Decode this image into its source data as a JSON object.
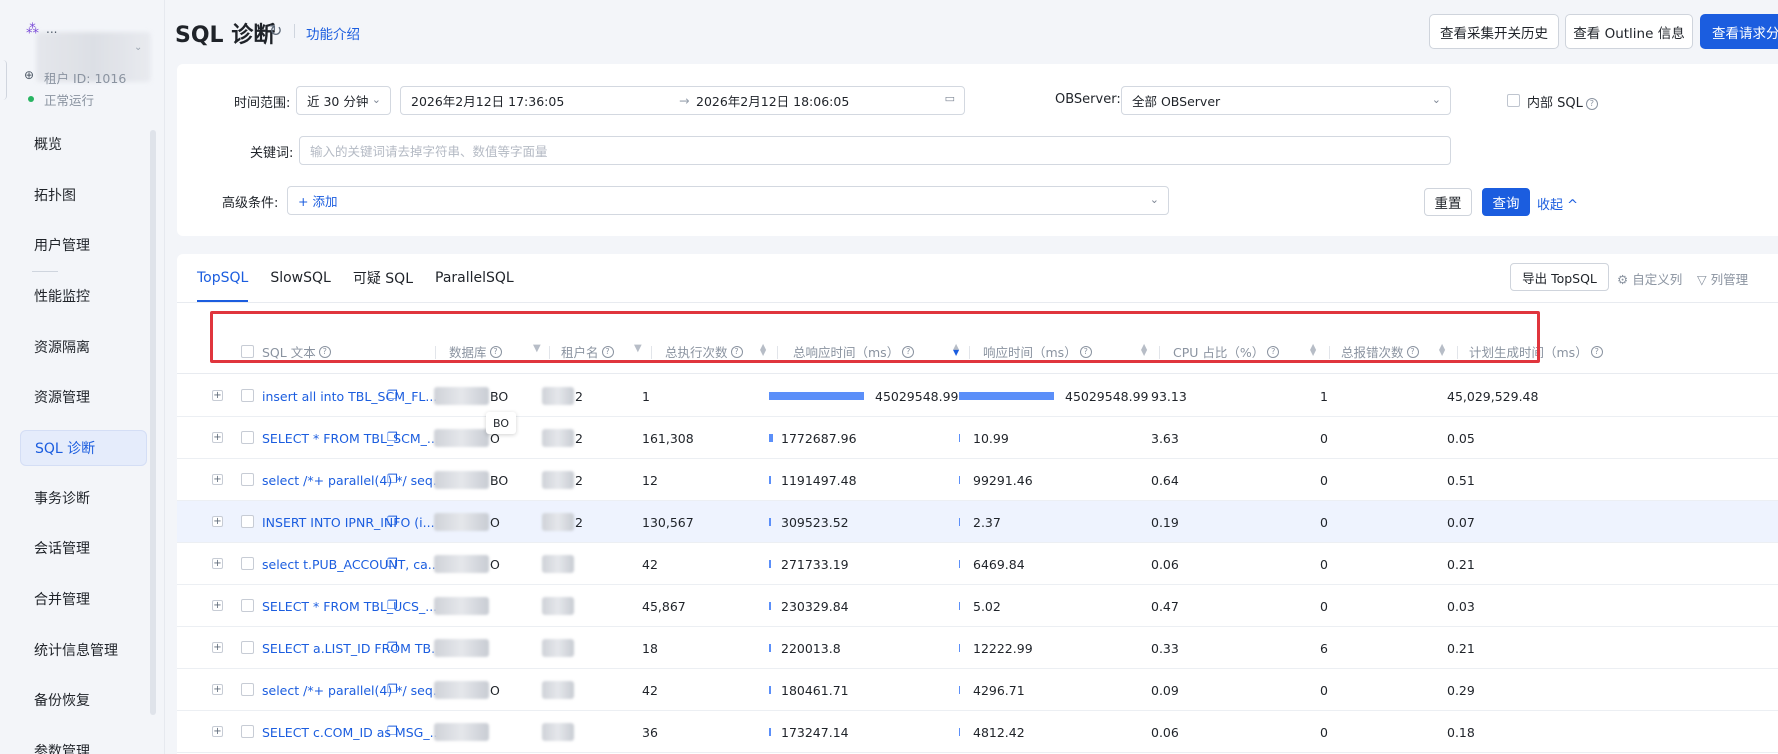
{
  "tenant": {
    "name": "...",
    "id_label": "租户 ID: 1016",
    "status": "正常运行"
  },
  "nav": {
    "items": [
      {
        "label": "概览"
      },
      {
        "label": "拓扑图"
      },
      {
        "label": "用户管理"
      },
      {
        "label": "性能监控"
      },
      {
        "label": "资源隔离"
      },
      {
        "label": "资源管理"
      },
      {
        "label": "SQL 诊断"
      },
      {
        "label": "事务诊断"
      },
      {
        "label": "会话管理"
      },
      {
        "label": "合并管理"
      },
      {
        "label": "统计信息管理"
      },
      {
        "label": "备份恢复"
      },
      {
        "label": "参数管理"
      }
    ],
    "active": "SQL 诊断"
  },
  "header": {
    "title": "SQL 诊断",
    "help_link": "功能介绍",
    "btn_history": "查看采集开关历史",
    "btn_outline": "查看 Outline 信息",
    "btn_request": "查看请求分析"
  },
  "filter": {
    "time_label": "时间范围:",
    "time_preset": "近 30 分钟",
    "start_time": "2026年2月12日 17:36:05",
    "end_time": "2026年2月12日 18:06:05",
    "arrow": "→",
    "observer_label": "OBServer:",
    "observer_value": "全部 OBServer",
    "internal_sql_label": "内部 SQL",
    "keyword_label": "关键词:",
    "keyword_placeholder": "输入的关键词请去掉字符串、数值等字面量",
    "advanced_label": "高级条件:",
    "add_label": "+ 添加",
    "reset": "重置",
    "query": "查询",
    "collapse": "收起 ^"
  },
  "tabs": {
    "items": [
      "TopSQL",
      "SlowSQL",
      "可疑 SQL",
      "ParallelSQL"
    ],
    "active": "TopSQL",
    "export": "导出 TopSQL",
    "custom_cols": "自定义列",
    "col_manage": "列管理"
  },
  "table": {
    "columns": {
      "sql_text": "SQL 文本",
      "database": "数据库",
      "user": "租户名",
      "exec_count": "总执行次数",
      "total_resp": "总响应时间（ms）",
      "resp": "响应时间（ms）",
      "cpu": "CPU 占比（%）",
      "errors": "总报错次数",
      "plan_time": "计划生成时间（ms）"
    },
    "rows": [
      {
        "sql": "insert all into TBL_SCM_FL...",
        "db_suffix": "BO",
        "user_suffix": "2",
        "exec": "1",
        "total_resp": "45029548.99",
        "total_resp_frac": 1.0,
        "resp": "45029548.99",
        "resp_frac": 1.0,
        "cpu": "93.13",
        "errors": "1",
        "plan": "45,029,529.48"
      },
      {
        "sql": "SELECT * FROM TBL_SCM_...",
        "db_suffix": "O",
        "user_suffix": "2",
        "exec": "161,308",
        "total_resp": "1772687.96",
        "total_resp_frac": 0.039,
        "resp": "10.99",
        "resp_frac": 0.0,
        "cpu": "3.63",
        "errors": "0",
        "plan": "0.05"
      },
      {
        "sql": "select /*+ parallel(4) */ seq...",
        "db_suffix": "BO",
        "user_suffix": "2",
        "exec": "12",
        "total_resp": "1191497.48",
        "total_resp_frac": 0.026,
        "resp": "99291.46",
        "resp_frac": 0.002,
        "cpu": "0.64",
        "errors": "0",
        "plan": "0.51"
      },
      {
        "sql": "INSERT INTO IPNR_INFO (i...",
        "db_suffix": "O",
        "user_suffix": "2",
        "exec": "130,567",
        "total_resp": "309523.52",
        "total_resp_frac": 0.007,
        "resp": "2.37",
        "resp_frac": 0.0,
        "cpu": "0.19",
        "errors": "0",
        "plan": "0.07"
      },
      {
        "sql": "select t.PUB_ACCOUNT, ca...",
        "db_suffix": "O",
        "user_suffix": "",
        "exec": "42",
        "total_resp": "271733.19",
        "total_resp_frac": 0.006,
        "resp": "6469.84",
        "resp_frac": 0.0,
        "cpu": "0.06",
        "errors": "0",
        "plan": "0.21"
      },
      {
        "sql": "SELECT * FROM TBL_UCS_...",
        "db_suffix": "",
        "user_suffix": "",
        "exec": "45,867",
        "total_resp": "230329.84",
        "total_resp_frac": 0.005,
        "resp": "5.02",
        "resp_frac": 0.0,
        "cpu": "0.47",
        "errors": "0",
        "plan": "0.03"
      },
      {
        "sql": "SELECT a.LIST_ID FROM TB...",
        "db_suffix": "",
        "user_suffix": "",
        "exec": "18",
        "total_resp": "220013.8",
        "total_resp_frac": 0.005,
        "resp": "12222.99",
        "resp_frac": 0.0,
        "cpu": "0.33",
        "errors": "6",
        "plan": "0.21"
      },
      {
        "sql": "select /*+ parallel(4) */ seq...",
        "db_suffix": "O",
        "user_suffix": "",
        "exec": "42",
        "total_resp": "180461.71",
        "total_resp_frac": 0.004,
        "resp": "4296.71",
        "resp_frac": 0.0,
        "cpu": "0.09",
        "errors": "0",
        "plan": "0.29"
      },
      {
        "sql": "SELECT c.COM_ID as MSG_...",
        "db_suffix": "",
        "user_suffix": "",
        "exec": "36",
        "total_resp": "173247.14",
        "total_resp_frac": 0.004,
        "resp": "4812.42",
        "resp_frac": 0.0,
        "cpu": "0.06",
        "errors": "0",
        "plan": "0.18"
      }
    ]
  },
  "tooltip": "BO"
}
